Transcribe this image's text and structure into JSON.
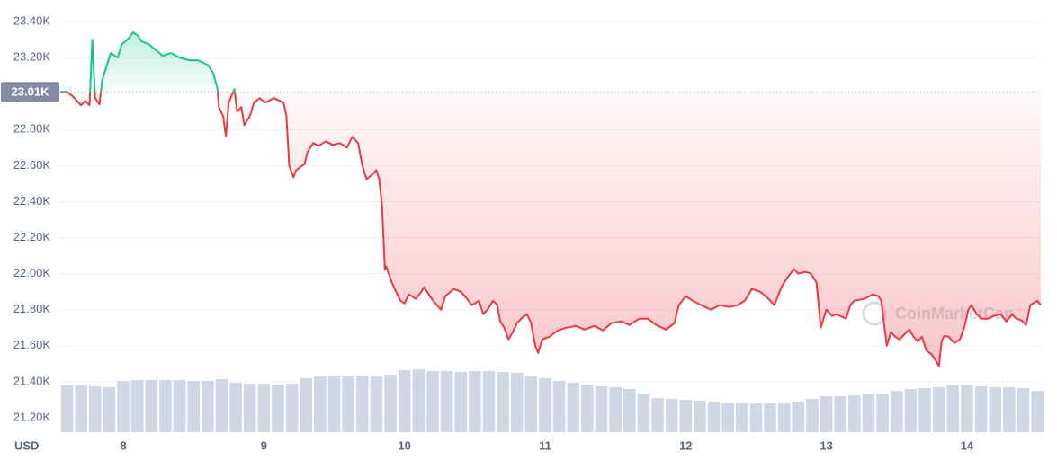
{
  "chart_data": {
    "type": "line",
    "x_axis_label": "USD",
    "watermark": "CoinMarketCap",
    "xlim": [
      7.552,
      14.525
    ],
    "xticks": [
      8,
      9,
      10,
      11,
      12,
      13,
      14
    ],
    "ylim": [
      21120,
      23480
    ],
    "yticks": [
      {
        "value": 21200,
        "label": "21.20K"
      },
      {
        "value": 21400,
        "label": "21.40K"
      },
      {
        "value": 21600,
        "label": "21.60K"
      },
      {
        "value": 21800,
        "label": "21.80K"
      },
      {
        "value": 22000,
        "label": "22.00K"
      },
      {
        "value": 22200,
        "label": "22.20K"
      },
      {
        "value": 22400,
        "label": "22.40K"
      },
      {
        "value": 22600,
        "label": "22.60K"
      },
      {
        "value": 22800,
        "label": "22.80K"
      },
      {
        "value": 23200,
        "label": "23.20K"
      },
      {
        "value": 23400,
        "label": "23.40K"
      }
    ],
    "grid": true,
    "baseline": {
      "value": 23010,
      "label": "23.01K"
    },
    "up_color": "#16c784",
    "down_color": "#ea3943",
    "x": [
      7.552,
      7.6,
      7.64,
      7.67,
      7.7,
      7.73,
      7.76,
      7.78,
      7.8,
      7.83,
      7.85,
      7.88,
      7.91,
      7.96,
      7.99,
      8.03,
      8.07,
      8.1,
      8.13,
      8.18,
      8.22,
      8.28,
      8.34,
      8.4,
      8.47,
      8.53,
      8.6,
      8.64,
      8.67,
      8.68,
      8.71,
      8.73,
      8.75,
      8.79,
      8.81,
      8.84,
      8.86,
      8.9,
      8.93,
      8.97,
      9.01,
      9.07,
      9.14,
      9.16,
      9.18,
      9.21,
      9.23,
      9.29,
      9.31,
      9.35,
      9.39,
      9.44,
      9.49,
      9.54,
      9.59,
      9.63,
      9.67,
      9.7,
      9.73,
      9.77,
      9.8,
      9.82,
      9.84,
      9.86,
      9.87,
      9.91,
      9.94,
      9.97,
      10.0,
      10.03,
      10.08,
      10.12,
      10.14,
      10.18,
      10.23,
      10.26,
      10.29,
      10.35,
      10.4,
      10.44,
      10.48,
      10.53,
      10.56,
      10.59,
      10.63,
      10.66,
      10.68,
      10.71,
      10.74,
      10.77,
      10.8,
      10.83,
      10.87,
      10.9,
      10.93,
      10.95,
      10.98,
      11.03,
      11.09,
      11.15,
      11.22,
      11.28,
      11.35,
      11.41,
      11.47,
      11.54,
      11.6,
      11.67,
      11.73,
      11.79,
      11.86,
      11.92,
      11.95,
      12.0,
      12.05,
      12.11,
      12.18,
      12.24,
      12.31,
      12.37,
      12.42,
      12.47,
      12.53,
      12.59,
      12.63,
      12.68,
      12.72,
      12.77,
      12.8,
      12.85,
      12.89,
      12.93,
      12.96,
      13.0,
      13.04,
      13.07,
      13.14,
      13.17,
      13.2,
      13.27,
      13.33,
      13.37,
      13.39,
      13.43,
      13.46,
      13.49,
      13.52,
      13.55,
      13.59,
      13.62,
      13.65,
      13.68,
      13.71,
      13.75,
      13.78,
      13.8,
      13.82,
      13.84,
      13.87,
      13.91,
      13.95,
      13.98,
      14.01,
      14.03,
      14.07,
      14.1,
      14.15,
      14.19,
      14.24,
      14.28,
      14.32,
      14.35,
      14.39,
      14.42,
      14.45,
      14.5,
      14.525
    ],
    "values": [
      23010,
      23010,
      22985,
      22960,
      22935,
      22960,
      22935,
      23300,
      22975,
      22940,
      23075,
      23150,
      23225,
      23200,
      23275,
      23300,
      23340,
      23325,
      23290,
      23275,
      23250,
      23210,
      23225,
      23200,
      23185,
      23185,
      23160,
      23115,
      23025,
      22925,
      22875,
      22765,
      22950,
      23025,
      22900,
      22925,
      22825,
      22875,
      22950,
      22975,
      22950,
      22975,
      22950,
      22875,
      22600,
      22535,
      22575,
      22610,
      22675,
      22725,
      22710,
      22735,
      22715,
      22725,
      22700,
      22760,
      22725,
      22600,
      22525,
      22550,
      22575,
      22525,
      22375,
      22025,
      22040,
      21950,
      21900,
      21850,
      21835,
      21885,
      21860,
      21900,
      21925,
      21875,
      21825,
      21800,
      21875,
      21915,
      21900,
      21865,
      21825,
      21850,
      21775,
      21800,
      21850,
      21825,
      21735,
      21700,
      21635,
      21675,
      21725,
      21750,
      21775,
      21725,
      21600,
      21560,
      21635,
      21650,
      21685,
      21700,
      21710,
      21690,
      21710,
      21685,
      21725,
      21735,
      21715,
      21750,
      21750,
      21715,
      21690,
      21725,
      21825,
      21875,
      21850,
      21825,
      21800,
      21825,
      21815,
      21825,
      21850,
      21915,
      21900,
      21860,
      21825,
      21925,
      21975,
      22025,
      22000,
      22010,
      22000,
      21950,
      21700,
      21800,
      21765,
      21775,
      21750,
      21825,
      21850,
      21860,
      21885,
      21875,
      21850,
      21600,
      21675,
      21650,
      21635,
      21660,
      21690,
      21650,
      21625,
      21650,
      21575,
      21550,
      21515,
      21485,
      21625,
      21655,
      21650,
      21615,
      21635,
      21700,
      21800,
      21825,
      21775,
      21750,
      21750,
      21765,
      21775,
      21735,
      21775,
      21750,
      21740,
      21715,
      21825,
      21850,
      21825
    ],
    "volume": {
      "color": "#cfd6e4",
      "x": [
        7.6,
        7.7,
        7.8,
        7.9,
        8.0,
        8.1,
        8.2,
        8.3,
        8.4,
        8.5,
        8.6,
        8.7,
        8.8,
        8.9,
        9.0,
        9.1,
        9.2,
        9.3,
        9.4,
        9.5,
        9.6,
        9.7,
        9.8,
        9.9,
        10.0,
        10.1,
        10.2,
        10.3,
        10.4,
        10.5,
        10.6,
        10.7,
        10.8,
        10.9,
        11.0,
        11.1,
        11.2,
        11.3,
        11.4,
        11.5,
        11.6,
        11.7,
        11.8,
        11.9,
        12.0,
        12.1,
        12.2,
        12.3,
        12.4,
        12.5,
        12.6,
        12.7,
        12.8,
        12.9,
        13.0,
        13.1,
        13.2,
        13.3,
        13.4,
        13.5,
        13.6,
        13.7,
        13.8,
        13.9,
        14.0,
        14.1,
        14.2,
        14.3,
        14.4,
        14.5
      ],
      "values": [
        52,
        52,
        51,
        50,
        57,
        58,
        58,
        58,
        58,
        57,
        57,
        59,
        55,
        54,
        54,
        53,
        54,
        60,
        62,
        63,
        63,
        63,
        62,
        64,
        69,
        70,
        68,
        68,
        67,
        68,
        68,
        67,
        66,
        62,
        60,
        57,
        55,
        53,
        51,
        50,
        48,
        43,
        38,
        37,
        36,
        35,
        34,
        33,
        33,
        32,
        32,
        33,
        34,
        37,
        40,
        40,
        41,
        43,
        43,
        46,
        48,
        49,
        50,
        52,
        53,
        51,
        50,
        50,
        49,
        46
      ]
    }
  }
}
